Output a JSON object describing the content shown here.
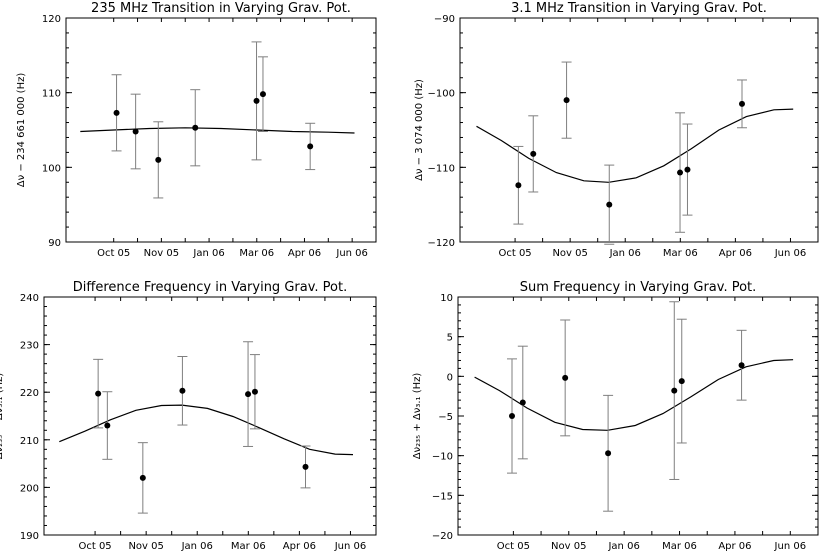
{
  "chart_data": [
    {
      "type": "scatter",
      "title": "235 MHz Transition in Varying Grav. Pot.",
      "ylabel_main": "Δν − 234 661 000",
      "ylabel_unit": "(Hz)",
      "xlabel": "",
      "ylim": [
        90,
        120
      ],
      "yticks": [
        90,
        100,
        110,
        120
      ],
      "ytick_labels": [
        "90",
        "100",
        "110",
        "120"
      ],
      "points": [
        {
          "x": 0.12,
          "y": 107.3,
          "err": 5.1
        },
        {
          "x": 0.92,
          "y": 104.8,
          "err": 5.0
        },
        {
          "x": 1.87,
          "y": 101.0,
          "err": 5.1
        },
        {
          "x": 3.42,
          "y": 105.3,
          "err": 5.1
        },
        {
          "x": 5.99,
          "y": 108.9,
          "err": 7.9
        },
        {
          "x": 6.26,
          "y": 109.8,
          "err": 5.0
        },
        {
          "x": 8.24,
          "y": 102.8,
          "err": 3.1
        }
      ],
      "curve": [
        {
          "x": -1.4,
          "y": 104.8
        },
        {
          "x": 0.0,
          "y": 105.0
        },
        {
          "x": 1.5,
          "y": 105.2
        },
        {
          "x": 3.0,
          "y": 105.3
        },
        {
          "x": 4.5,
          "y": 105.2
        },
        {
          "x": 6.0,
          "y": 105.0
        },
        {
          "x": 7.5,
          "y": 104.8
        },
        {
          "x": 9.0,
          "y": 104.7
        },
        {
          "x": 10.1,
          "y": 104.6
        }
      ]
    },
    {
      "type": "scatter",
      "title": "3.1 MHz Transition in Varying Grav. Pot.",
      "ylabel_main": "Δν − 3 074 000",
      "ylabel_unit": "(Hz)",
      "xlabel": "",
      "ylim": [
        -120,
        -90
      ],
      "yticks": [
        -120,
        -110,
        -100,
        -90
      ],
      "ytick_labels": [
        "−120",
        "−110",
        "−100",
        "−90"
      ],
      "points": [
        {
          "x": 0.12,
          "y": -112.4,
          "err": 5.2
        },
        {
          "x": 0.66,
          "y": -108.2,
          "err": 5.1
        },
        {
          "x": 1.87,
          "y": -101.0,
          "err": 5.1
        },
        {
          "x": 3.42,
          "y": -115.0,
          "err": 5.3
        },
        {
          "x": 5.99,
          "y": -110.7,
          "err": 8.0
        },
        {
          "x": 6.26,
          "y": -110.3,
          "err": 6.1
        },
        {
          "x": 8.24,
          "y": -101.5,
          "err": 3.2
        }
      ],
      "curve": [
        {
          "x": -1.4,
          "y": -104.5
        },
        {
          "x": -0.5,
          "y": -106.4
        },
        {
          "x": 0.5,
          "y": -108.8
        },
        {
          "x": 1.5,
          "y": -110.7
        },
        {
          "x": 2.5,
          "y": -111.8
        },
        {
          "x": 3.4,
          "y": -112.0
        },
        {
          "x": 4.4,
          "y": -111.4
        },
        {
          "x": 5.4,
          "y": -109.8
        },
        {
          "x": 6.4,
          "y": -107.5
        },
        {
          "x": 7.4,
          "y": -105.0
        },
        {
          "x": 8.4,
          "y": -103.2
        },
        {
          "x": 9.4,
          "y": -102.3
        },
        {
          "x": 10.1,
          "y": -102.2
        }
      ]
    },
    {
      "type": "scatter",
      "title": "Difference Frequency in Varying Grav. Pot.",
      "ylabel_main": "Δν₂₃₅ − Δν₃.₁",
      "ylabel_unit": "(Hz)",
      "xlabel": "",
      "ylim": [
        190,
        240
      ],
      "yticks": [
        190,
        200,
        210,
        220,
        230,
        240
      ],
      "ytick_labels": [
        "190",
        "200",
        "210",
        "220",
        "230",
        "240"
      ],
      "points": [
        {
          "x": 0.12,
          "y": 219.7,
          "err": 7.2
        },
        {
          "x": 0.48,
          "y": 213.0,
          "err": 7.1
        },
        {
          "x": 1.87,
          "y": 202.0,
          "err": 7.4
        },
        {
          "x": 3.42,
          "y": 220.3,
          "err": 7.2
        },
        {
          "x": 5.99,
          "y": 219.6,
          "err": 11.0
        },
        {
          "x": 6.26,
          "y": 220.1,
          "err": 7.8
        },
        {
          "x": 8.24,
          "y": 204.3,
          "err": 4.4
        }
      ],
      "curve": [
        {
          "x": -1.4,
          "y": 209.6
        },
        {
          "x": -0.4,
          "y": 211.8
        },
        {
          "x": 0.6,
          "y": 214.2
        },
        {
          "x": 1.6,
          "y": 216.2
        },
        {
          "x": 2.6,
          "y": 217.2
        },
        {
          "x": 3.4,
          "y": 217.3
        },
        {
          "x": 4.4,
          "y": 216.6
        },
        {
          "x": 5.4,
          "y": 214.9
        },
        {
          "x": 6.4,
          "y": 212.6
        },
        {
          "x": 7.4,
          "y": 210.2
        },
        {
          "x": 8.4,
          "y": 208.0
        },
        {
          "x": 9.4,
          "y": 207.0
        },
        {
          "x": 10.1,
          "y": 206.9
        }
      ]
    },
    {
      "type": "scatter",
      "title": "Sum Frequency in Varying Grav. Pot.",
      "ylabel_main": "Δν₂₃₅ + Δν₃.₁",
      "ylabel_unit": "(Hz)",
      "xlabel": "",
      "ylim": [
        -20,
        10
      ],
      "yticks": [
        -20,
        -15,
        -10,
        -5,
        0,
        5,
        10
      ],
      "ytick_labels": [
        "−20",
        "−15",
        "−10",
        "−5",
        "0",
        "5",
        "10"
      ],
      "points": [
        {
          "x": -0.05,
          "y": -5.0,
          "err": 7.2
        },
        {
          "x": 0.34,
          "y": -3.3,
          "err": 7.1
        },
        {
          "x": 1.87,
          "y": -0.2,
          "err": 7.3
        },
        {
          "x": 3.42,
          "y": -9.7,
          "err": 7.3
        },
        {
          "x": 5.81,
          "y": -1.8,
          "err": 11.2
        },
        {
          "x": 6.08,
          "y": -0.6,
          "err": 7.8
        },
        {
          "x": 8.24,
          "y": 1.4,
          "err": 4.4
        }
      ],
      "curve": [
        {
          "x": -1.4,
          "y": -0.1
        },
        {
          "x": -0.5,
          "y": -1.8
        },
        {
          "x": 0.5,
          "y": -4.0
        },
        {
          "x": 1.5,
          "y": -5.8
        },
        {
          "x": 2.5,
          "y": -6.7
        },
        {
          "x": 3.4,
          "y": -6.8
        },
        {
          "x": 4.4,
          "y": -6.2
        },
        {
          "x": 5.4,
          "y": -4.7
        },
        {
          "x": 6.4,
          "y": -2.6
        },
        {
          "x": 7.4,
          "y": -0.4
        },
        {
          "x": 8.4,
          "y": 1.2
        },
        {
          "x": 9.4,
          "y": 2.0
        },
        {
          "x": 10.1,
          "y": 2.1
        }
      ]
    }
  ],
  "xaxis": {
    "xlim": [
      -2.0,
      11.0
    ],
    "ticks": [
      0,
      1,
      2,
      3,
      4,
      5,
      6,
      7,
      8,
      9,
      10
    ],
    "labels": [
      {
        "at": 0.0,
        "text": "Oct 05"
      },
      {
        "at": 2.0,
        "text": "Nov 05"
      },
      {
        "at": 4.0,
        "text": "Jan 06"
      },
      {
        "at": 6.0,
        "text": "Mar 06"
      },
      {
        "at": 8.0,
        "text": "Apr 06"
      },
      {
        "at": 10.0,
        "text": "Jun 06"
      }
    ]
  },
  "colors": {
    "axis": "#000000",
    "marker": "#000000",
    "curve": "#000000",
    "errorbar": "#7f7f7f",
    "background": "#ffffff"
  }
}
